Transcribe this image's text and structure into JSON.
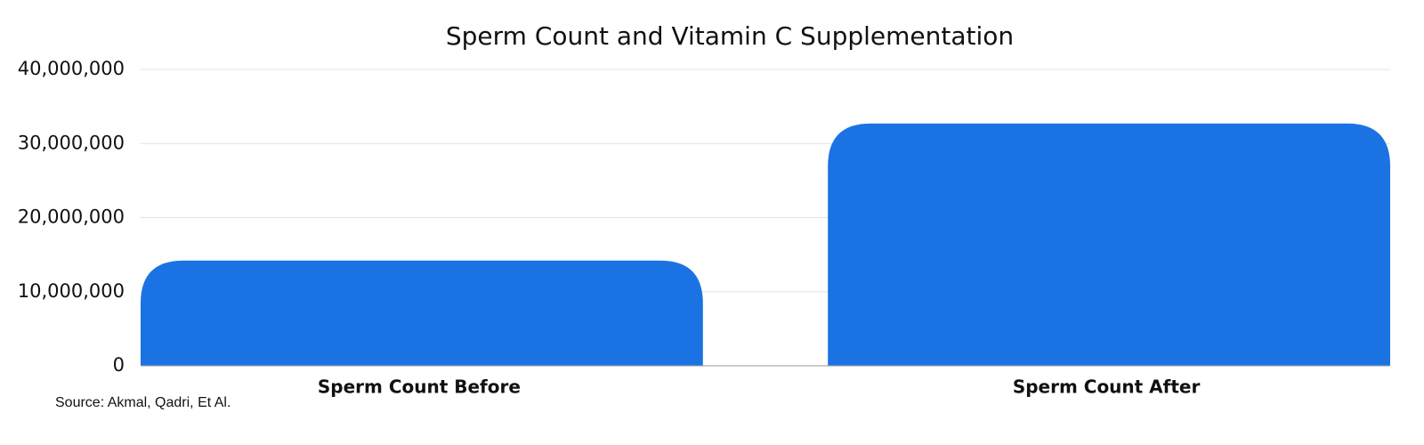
{
  "chart_data": {
    "type": "bar",
    "title": "Sperm Count and Vitamin C Supplementation",
    "categories": [
      "Sperm Count Before",
      "Sperm Count After"
    ],
    "values": [
      14200000,
      32700000
    ],
    "color": "#1b73e3",
    "ylim": [
      0,
      40000000
    ],
    "yticks": [
      0,
      {
        "value": 10000000,
        "label": "10,000,000"
      },
      {
        "value": 20000000,
        "label": "20,000,000"
      },
      {
        "value": 30000000,
        "label": "30,000,000"
      },
      {
        "value": 40000000,
        "label": "40,000,000"
      }
    ],
    "grid": true,
    "source": "Source: Akmal, Qadri, Et Al."
  }
}
